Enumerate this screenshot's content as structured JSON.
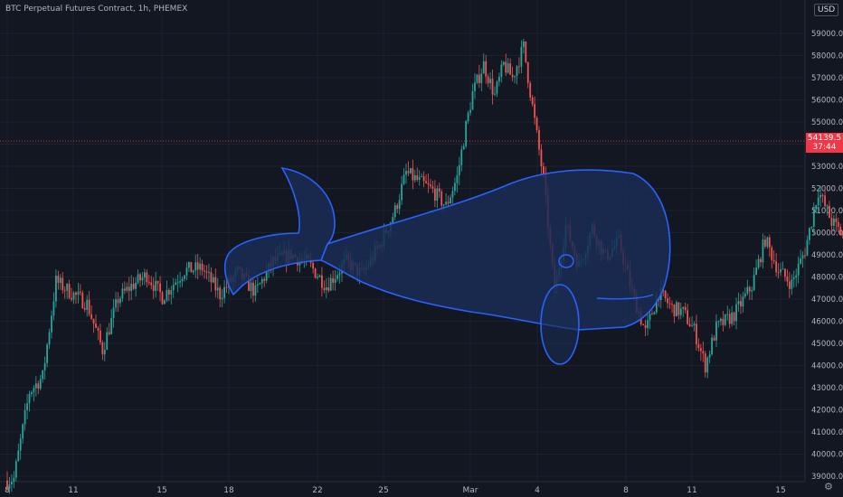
{
  "header": {
    "symbol_title": "BTC Perpetual Futures Contract, 1h, PHEMEX",
    "currency": "USD"
  },
  "price_marker": {
    "price": "54139.5",
    "countdown": "37:44"
  },
  "icons": {
    "settings": "gear-icon"
  },
  "colors": {
    "background": "#131722",
    "grid": "#1e222d",
    "up": "#26a69a",
    "down": "#ef5350",
    "price_line": "#f23645",
    "drawing_stroke": "#2962ff",
    "drawing_fill": "#1b2d55",
    "axis_text": "#b2b5be"
  },
  "chart_data": {
    "type": "candlestick",
    "title": "BTC Perpetual Futures Contract, 1h, PHEMEX",
    "x_tick_labels": [
      "8",
      "11",
      "15",
      "18",
      "22",
      "25",
      "Mar",
      "4",
      "8",
      "11",
      "15"
    ],
    "y_tick_labels": [
      "39000.0",
      "40000.0",
      "41000.0",
      "42000.0",
      "43000.0",
      "44000.0",
      "45000.0",
      "46000.0",
      "47000.0",
      "48000.0",
      "49000.0",
      "50000.0",
      "51000.0",
      "52000.0",
      "53000.0",
      "54000.0",
      "55000.0",
      "56000.0",
      "57000.0",
      "58000.0",
      "59000.0"
    ],
    "ylim": [
      38900,
      60100
    ],
    "last_price": 54139.5,
    "price_path": [
      [
        0,
        38800
      ],
      [
        0.3,
        38900
      ],
      [
        1.0,
        42800
      ],
      [
        1.6,
        43500
      ],
      [
        2.2,
        47800
      ],
      [
        3.0,
        47200
      ],
      [
        3.6,
        46800
      ],
      [
        4.3,
        44700
      ],
      [
        5.0,
        47000
      ],
      [
        5.6,
        47600
      ],
      [
        6.3,
        48100
      ],
      [
        7.0,
        47100
      ],
      [
        8.0,
        48300
      ],
      [
        8.8,
        48400
      ],
      [
        9.6,
        47200
      ],
      [
        10.4,
        48200
      ],
      [
        11.2,
        47300
      ],
      [
        12.0,
        48700
      ],
      [
        12.8,
        49000
      ],
      [
        13.6,
        48600
      ],
      [
        14.4,
        47600
      ],
      [
        15.3,
        48700
      ],
      [
        16.0,
        48100
      ],
      [
        16.8,
        49400
      ],
      [
        17.5,
        51000
      ],
      [
        18.0,
        52700
      ],
      [
        18.6,
        52300
      ],
      [
        19.2,
        51900
      ],
      [
        19.8,
        51200
      ],
      [
        20.3,
        52500
      ],
      [
        20.7,
        54800
      ],
      [
        21.0,
        56300
      ],
      [
        21.5,
        57600
      ],
      [
        22.0,
        56200
      ],
      [
        22.4,
        57600
      ],
      [
        22.8,
        57000
      ],
      [
        23.3,
        58400
      ],
      [
        23.7,
        55700
      ],
      [
        24.2,
        52400
      ],
      [
        24.7,
        47300
      ],
      [
        25.2,
        50300
      ],
      [
        25.8,
        48500
      ],
      [
        26.4,
        50200
      ],
      [
        27.0,
        48900
      ],
      [
        27.6,
        49600
      ],
      [
        28.2,
        47300
      ],
      [
        28.8,
        45500
      ],
      [
        29.4,
        47300
      ],
      [
        30.0,
        46600
      ],
      [
        30.5,
        46400
      ],
      [
        31.0,
        45600
      ],
      [
        31.5,
        44000
      ],
      [
        32.0,
        45700
      ],
      [
        32.8,
        46300
      ],
      [
        33.6,
        47600
      ],
      [
        34.2,
        49700
      ],
      [
        34.8,
        48300
      ],
      [
        35.4,
        47700
      ],
      [
        36.0,
        49200
      ],
      [
        36.6,
        51900
      ],
      [
        37.2,
        50500
      ],
      [
        37.8,
        49800
      ],
      [
        38.4,
        48200
      ],
      [
        39.0,
        47500
      ],
      [
        39.6,
        49100
      ],
      [
        40.2,
        48600
      ],
      [
        40.8,
        47600
      ],
      [
        41.4,
        49800
      ],
      [
        42.0,
        51200
      ],
      [
        42.6,
        50700
      ],
      [
        43.2,
        50200
      ],
      [
        43.8,
        51000
      ],
      [
        44.3,
        52300
      ],
      [
        44.8,
        53800
      ],
      [
        45.3,
        54600
      ],
      [
        45.7,
        54200
      ]
    ]
  }
}
